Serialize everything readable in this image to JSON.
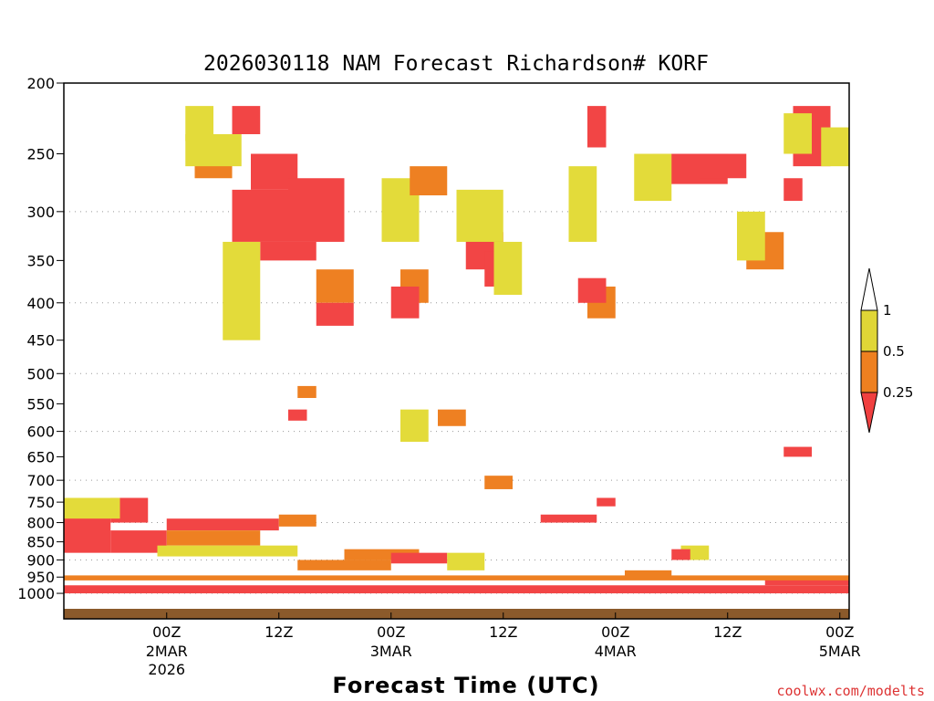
{
  "chart_data": {
    "type": "heatmap",
    "title": "2026030118 NAM Forecast Richardson# KORF",
    "xlabel": "Forecast Time (UTC)",
    "ylabel": "",
    "credit": "coolwx.com/modelts",
    "x_hours_range": [
      -5,
      79
    ],
    "y_levels": [
      200,
      250,
      300,
      350,
      400,
      450,
      500,
      550,
      600,
      650,
      700,
      750,
      800,
      850,
      900,
      950,
      1000
    ],
    "gridlines": [
      300,
      400,
      500,
      600,
      700,
      800,
      900,
      1000
    ],
    "x_ticks": [
      {
        "hour": 6,
        "label": "00Z",
        "date": "2MAR",
        "year": "2026"
      },
      {
        "hour": 18,
        "label": "12Z",
        "date": "",
        "year": ""
      },
      {
        "hour": 30,
        "label": "00Z",
        "date": "3MAR",
        "year": ""
      },
      {
        "hour": 42,
        "label": "12Z",
        "date": "",
        "year": ""
      },
      {
        "hour": 54,
        "label": "00Z",
        "date": "4MAR",
        "year": ""
      },
      {
        "hour": 66,
        "label": "12Z",
        "date": "",
        "year": ""
      },
      {
        "hour": 78,
        "label": "00Z",
        "date": "5MAR",
        "year": ""
      }
    ],
    "legend": {
      "thresholds": [
        "1",
        "0.5",
        "0.25"
      ],
      "bins": [
        {
          "range": "0.5-1",
          "color": "#e0d636"
        },
        {
          "range": "0.25-0.5",
          "color": "#ee8020"
        },
        {
          "range": "<0.25",
          "color": "#f04040"
        }
      ]
    },
    "colors": {
      "yellow": "#e3db3a",
      "orange": "#ee8022",
      "red": "#f24545",
      "ground": "#8b5a2b"
    },
    "regions": [
      {
        "h0": 13,
        "h1": 19,
        "p0": 280,
        "p1": 330,
        "c": "r"
      },
      {
        "h0": 15,
        "h1": 20,
        "p0": 250,
        "p1": 280,
        "c": "r"
      },
      {
        "h0": 19,
        "h1": 25,
        "p0": 270,
        "p1": 330,
        "c": "r"
      },
      {
        "h0": 16,
        "h1": 22,
        "p0": 330,
        "p1": 350,
        "c": "r"
      },
      {
        "h0": 13,
        "h1": 16,
        "p0": 215,
        "p1": 235,
        "c": "r"
      },
      {
        "h0": 9,
        "h1": 13,
        "p0": 250,
        "p1": 270,
        "c": "o"
      },
      {
        "h0": 8,
        "h1": 14,
        "p0": 235,
        "p1": 260,
        "c": "y"
      },
      {
        "h0": 8,
        "h1": 11,
        "p0": 215,
        "p1": 240,
        "c": "y"
      },
      {
        "h0": 12,
        "h1": 16,
        "p0": 330,
        "p1": 450,
        "c": "y"
      },
      {
        "h0": 22,
        "h1": 26,
        "p0": 360,
        "p1": 400,
        "c": "o"
      },
      {
        "h0": 22,
        "h1": 26,
        "p0": 400,
        "p1": 430,
        "c": "r"
      },
      {
        "h0": 29,
        "h1": 33,
        "p0": 270,
        "p1": 330,
        "c": "y"
      },
      {
        "h0": 32,
        "h1": 36,
        "p0": 260,
        "p1": 285,
        "c": "o"
      },
      {
        "h0": 31,
        "h1": 34,
        "p0": 360,
        "p1": 400,
        "c": "o"
      },
      {
        "h0": 30,
        "h1": 33,
        "p0": 380,
        "p1": 420,
        "c": "r"
      },
      {
        "h0": 38,
        "h1": 42,
        "p0": 320,
        "p1": 360,
        "c": "r"
      },
      {
        "h0": 37,
        "h1": 42,
        "p0": 280,
        "p1": 330,
        "c": "y"
      },
      {
        "h0": 40,
        "h1": 43,
        "p0": 340,
        "p1": 380,
        "c": "r"
      },
      {
        "h0": 41,
        "h1": 44,
        "p0": 330,
        "p1": 390,
        "c": "y"
      },
      {
        "h0": 51,
        "h1": 53,
        "p0": 215,
        "p1": 245,
        "c": "r"
      },
      {
        "h0": 49,
        "h1": 52,
        "p0": 260,
        "p1": 330,
        "c": "y"
      },
      {
        "h0": 51,
        "h1": 54,
        "p0": 380,
        "p1": 420,
        "c": "o"
      },
      {
        "h0": 50,
        "h1": 53,
        "p0": 370,
        "p1": 400,
        "c": "r"
      },
      {
        "h0": 58,
        "h1": 66,
        "p0": 250,
        "p1": 275,
        "c": "r"
      },
      {
        "h0": 56,
        "h1": 60,
        "p0": 250,
        "p1": 290,
        "c": "y"
      },
      {
        "h0": 63,
        "h1": 68,
        "p0": 250,
        "p1": 270,
        "c": "r"
      },
      {
        "h0": 68,
        "h1": 72,
        "p0": 320,
        "p1": 360,
        "c": "o"
      },
      {
        "h0": 67,
        "h1": 70,
        "p0": 300,
        "p1": 350,
        "c": "y"
      },
      {
        "h0": 73,
        "h1": 77,
        "p0": 215,
        "p1": 260,
        "c": "r"
      },
      {
        "h0": 72,
        "h1": 75,
        "p0": 220,
        "p1": 250,
        "c": "y"
      },
      {
        "h0": 72,
        "h1": 74,
        "p0": 270,
        "p1": 290,
        "c": "r"
      },
      {
        "h0": 76,
        "h1": 79,
        "p0": 230,
        "p1": 260,
        "c": "y"
      },
      {
        "h0": 19,
        "h1": 21,
        "p0": 560,
        "p1": 580,
        "c": "r"
      },
      {
        "h0": 20,
        "h1": 22,
        "p0": 520,
        "p1": 540,
        "c": "o"
      },
      {
        "h0": 35,
        "h1": 38,
        "p0": 560,
        "p1": 590,
        "c": "o"
      },
      {
        "h0": 31,
        "h1": 34,
        "p0": 560,
        "p1": 620,
        "c": "y"
      },
      {
        "h0": 72,
        "h1": 75,
        "p0": 630,
        "p1": 650,
        "c": "r"
      },
      {
        "h0": -5,
        "h1": 0,
        "p0": 780,
        "p1": 880,
        "c": "r"
      },
      {
        "h0": 0,
        "h1": 6,
        "p0": 820,
        "p1": 880,
        "c": "r"
      },
      {
        "h0": 0,
        "h1": 4,
        "p0": 740,
        "p1": 800,
        "c": "r"
      },
      {
        "h0": -5,
        "h1": 1,
        "p0": 740,
        "p1": 790,
        "c": "y"
      },
      {
        "h0": 6,
        "h1": 18,
        "p0": 790,
        "p1": 820,
        "c": "r"
      },
      {
        "h0": 6,
        "h1": 16,
        "p0": 820,
        "p1": 860,
        "c": "o"
      },
      {
        "h0": 5,
        "h1": 20,
        "p0": 860,
        "p1": 890,
        "c": "y"
      },
      {
        "h0": 18,
        "h1": 22,
        "p0": 780,
        "p1": 810,
        "c": "o"
      },
      {
        "h0": 20,
        "h1": 30,
        "p0": 900,
        "p1": 930,
        "c": "o"
      },
      {
        "h0": 25,
        "h1": 33,
        "p0": 870,
        "p1": 900,
        "c": "o"
      },
      {
        "h0": 30,
        "h1": 36,
        "p0": 880,
        "p1": 910,
        "c": "r"
      },
      {
        "h0": 36,
        "h1": 40,
        "p0": 880,
        "p1": 930,
        "c": "y"
      },
      {
        "h0": 52,
        "h1": 54,
        "p0": 740,
        "p1": 760,
        "c": "r"
      },
      {
        "h0": 46,
        "h1": 52,
        "p0": 780,
        "p1": 800,
        "c": "r"
      },
      {
        "h0": 40,
        "h1": 43,
        "p0": 690,
        "p1": 720,
        "c": "o"
      },
      {
        "h0": 61,
        "h1": 64,
        "p0": 860,
        "p1": 900,
        "c": "y"
      },
      {
        "h0": 60,
        "h1": 62,
        "p0": 870,
        "p1": 900,
        "c": "r"
      },
      {
        "h0": 55,
        "h1": 60,
        "p0": 930,
        "p1": 950,
        "c": "o"
      },
      {
        "h0": 70,
        "h1": 79,
        "p0": 950,
        "p1": 975,
        "c": "r"
      },
      {
        "h0": -5,
        "h1": 79,
        "p0": 975,
        "p1": 1000,
        "c": "r"
      },
      {
        "h0": -5,
        "h1": 79,
        "p0": 945,
        "p1": 960,
        "c": "o"
      }
    ]
  }
}
